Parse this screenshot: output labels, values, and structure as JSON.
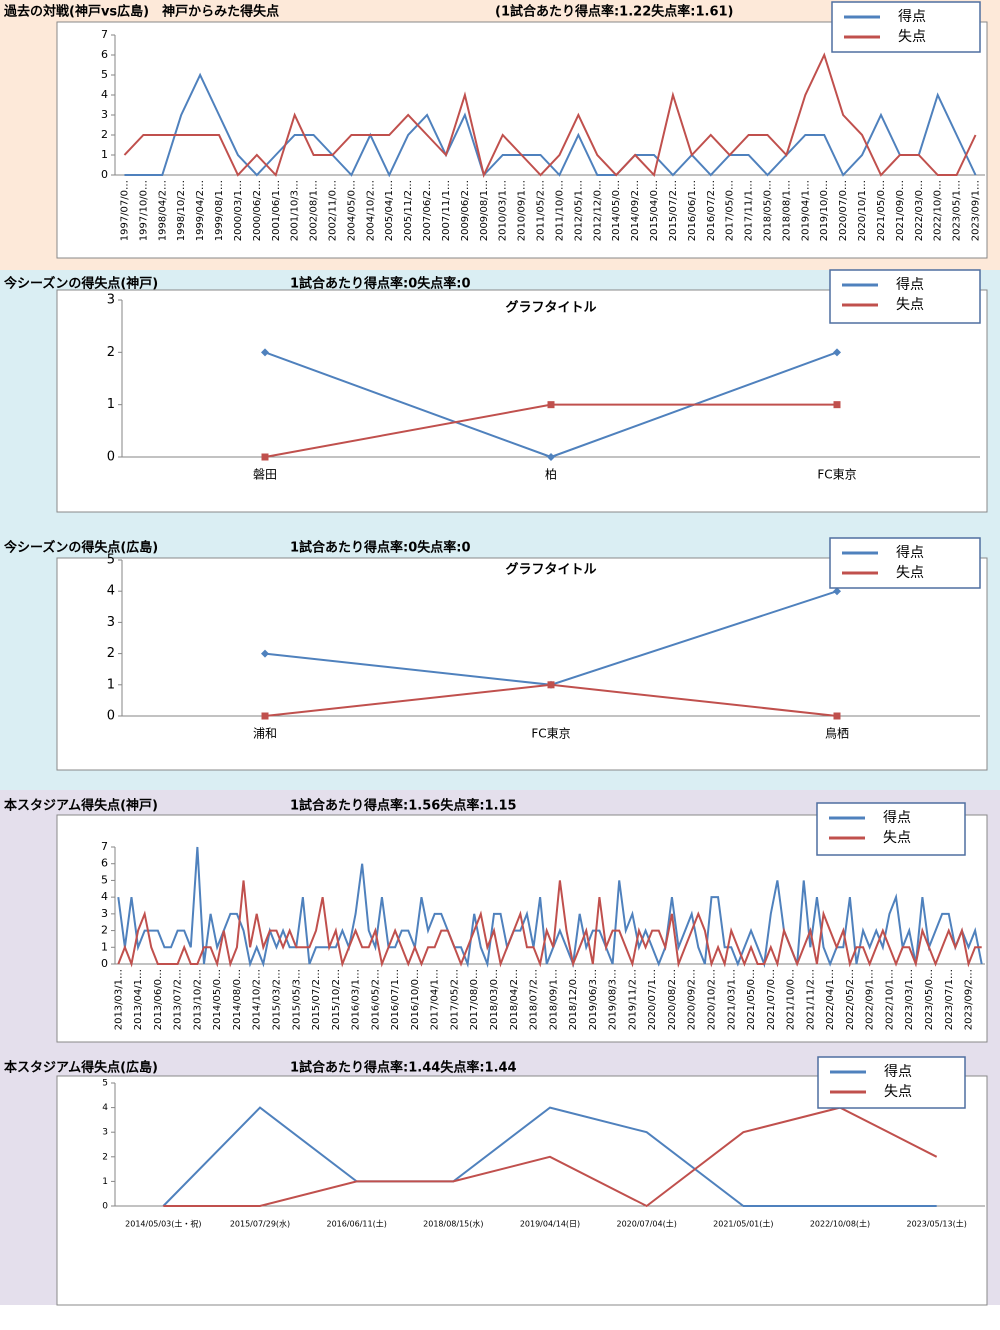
{
  "chart_data": [
    {
      "type": "line",
      "title": "過去の対戦(神戸vs広島)　神戸からみた得失点",
      "subtitle": "(1試合あたり得点率:1.22失点率:1.61)",
      "categories": [
        "1997/07/0…",
        "1997/10/0…",
        "1998/04/2…",
        "1998/10/2…",
        "1999/04/2…",
        "1999/08/1…",
        "2000/03/1…",
        "2000/06/2…",
        "2001/06/1…",
        "2001/10/3…",
        "2002/08/1…",
        "2002/11/0…",
        "2004/05/0…",
        "2004/10/2…",
        "2005/04/1…",
        "2005/11/2…",
        "2007/06/2…",
        "2007/11/1…",
        "2009/06/2…",
        "2009/08/1…",
        "2010/03/1…",
        "2010/09/1…",
        "2011/05/2…",
        "2011/10/0…",
        "2012/05/1…",
        "2012/12/0…",
        "2014/05/0…",
        "2014/09/2…",
        "2015/04/0…",
        "2015/07/2…",
        "2016/06/1…",
        "2016/07/2…",
        "2017/05/0…",
        "2017/11/1…",
        "2018/05/0…",
        "2018/08/1…",
        "2019/04/1…",
        "2019/10/0…",
        "2020/07/0…",
        "2020/10/1…",
        "2021/05/0…",
        "2021/09/0…",
        "2022/03/0…",
        "2022/10/0…",
        "2023/05/1…",
        "2023/09/1…"
      ],
      "series": [
        {
          "name": "得点",
          "color": "#4f81bd",
          "values": [
            0,
            0,
            0,
            3,
            5,
            3,
            1,
            0,
            1,
            2,
            2,
            1,
            0,
            2,
            0,
            2,
            3,
            1,
            3,
            0,
            1,
            1,
            1,
            0,
            2,
            0,
            0,
            1,
            1,
            0,
            1,
            0,
            1,
            1,
            0,
            1,
            2,
            2,
            0,
            1,
            3,
            1,
            1,
            4,
            2,
            0
          ]
        },
        {
          "name": "失点",
          "color": "#c0504d",
          "values": [
            1,
            2,
            2,
            2,
            2,
            2,
            0,
            1,
            0,
            3,
            1,
            1,
            2,
            2,
            2,
            3,
            2,
            1,
            4,
            0,
            2,
            1,
            0,
            1,
            3,
            1,
            0,
            1,
            0,
            4,
            1,
            2,
            1,
            2,
            2,
            1,
            4,
            6,
            3,
            2,
            0,
            1,
            1,
            0,
            0,
            2
          ]
        }
      ],
      "ylim": [
        0,
        7
      ],
      "yticks": [
        0,
        1,
        2,
        3,
        4,
        5,
        6,
        7
      ],
      "grid": false,
      "legend": "upper right",
      "markers": false
    },
    {
      "type": "line",
      "title": "今シーズンの得失点(神戸)",
      "subtitle": "1試合あたり得点率:0失点率:0",
      "plot_title": "グラフタイトル",
      "categories": [
        "磐田",
        "柏",
        "FC東京"
      ],
      "series": [
        {
          "name": "得点",
          "color": "#4f81bd",
          "values": [
            2,
            0,
            2
          ]
        },
        {
          "name": "失点",
          "color": "#c0504d",
          "values": [
            0,
            1,
            1
          ]
        }
      ],
      "ylim": [
        0,
        3
      ],
      "yticks": [
        0,
        1,
        2,
        3
      ],
      "grid": false,
      "legend": "upper right",
      "markers": true
    },
    {
      "type": "line",
      "title": "今シーズンの得失点(広島)",
      "subtitle": "1試合あたり得点率:0失点率:0",
      "plot_title": "グラフタイトル",
      "categories": [
        "浦和",
        "FC東京",
        "鳥栖"
      ],
      "series": [
        {
          "name": "得点",
          "color": "#4f81bd",
          "values": [
            2,
            1,
            4
          ]
        },
        {
          "name": "失点",
          "color": "#c0504d",
          "values": [
            0,
            1,
            0
          ]
        }
      ],
      "ylim": [
        0,
        5
      ],
      "yticks": [
        0,
        1,
        2,
        3,
        4,
        5
      ],
      "grid": false,
      "legend": "upper right",
      "markers": true
    },
    {
      "type": "line",
      "title": "本スタジアム得失点(神戸)",
      "subtitle": "1試合あたり得点率:1.56失点率:1.15",
      "categories": [
        "2013/03/1…",
        null,
        null,
        "2013/04/1…",
        null,
        null,
        "2013/06/0…",
        null,
        null,
        "2013/07/2…",
        null,
        null,
        "2013/10/2…",
        null,
        null,
        "2014/05/0…",
        null,
        null,
        "2014/08/0…",
        null,
        null,
        "2014/10/2…",
        null,
        null,
        "2015/03/2…",
        null,
        null,
        "2015/05/3…",
        null,
        null,
        "2015/07/2…",
        null,
        null,
        "2015/10/2…",
        null,
        null,
        "2016/03/1…",
        null,
        null,
        "2016/05/2…",
        null,
        null,
        "2016/07/1…",
        null,
        null,
        "2016/10/0…",
        null,
        null,
        "2017/04/1…",
        null,
        null,
        "2017/05/2…",
        null,
        null,
        "2017/08/0…",
        null,
        null,
        "2018/03/0…",
        null,
        null,
        "2018/04/2…",
        null,
        null,
        "2018/07/2…",
        null,
        null,
        "2018/09/1…",
        null,
        null,
        "2018/12/0…",
        null,
        null,
        "2019/06/3…",
        null,
        null,
        "2019/08/3…",
        null,
        null,
        "2019/11/2…",
        null,
        null,
        "2020/07/1…",
        null,
        null,
        "2020/08/2…",
        null,
        null,
        "2020/09/2…",
        null,
        null,
        "2020/10/2…",
        null,
        null,
        "2021/03/1…",
        null,
        null,
        "2021/05/0…",
        null,
        null,
        "2021/07/0…",
        null,
        null,
        "2021/10/0…",
        null,
        null,
        "2021/11/2…",
        null,
        null,
        "2022/04/1…",
        null,
        null,
        "2022/05/2…",
        null,
        null,
        "2022/09/1…",
        null,
        null,
        "2022/10/1…",
        null,
        null,
        "2023/03/1…",
        null,
        null,
        "2023/05/0…",
        null,
        null,
        "2023/07/1…",
        null,
        null,
        "2023/09/2…",
        null,
        null
      ],
      "series": [
        {
          "name": "得点",
          "color": "#4f81bd",
          "values": [
            4,
            1,
            4,
            1,
            2,
            2,
            2,
            1,
            1,
            2,
            2,
            1,
            7,
            0,
            3,
            1,
            2,
            3,
            3,
            2,
            0,
            1,
            0,
            2,
            1,
            2,
            1,
            1,
            4,
            0,
            1,
            1,
            1,
            1,
            2,
            1,
            3,
            6,
            2,
            1,
            4,
            1,
            1,
            2,
            2,
            1,
            4,
            2,
            3,
            3,
            2,
            1,
            1,
            0,
            3,
            1,
            0,
            3,
            3,
            1,
            2,
            2,
            3,
            1,
            4,
            0,
            1,
            2,
            1,
            0,
            3,
            1,
            2,
            2,
            1,
            0,
            5,
            2,
            3,
            1,
            2,
            1,
            0,
            1,
            4,
            1,
            2,
            3,
            1,
            0,
            4,
            4,
            1,
            1,
            0,
            1,
            2,
            1,
            0,
            3,
            5,
            2,
            1,
            0,
            5,
            1,
            4,
            1,
            0,
            1,
            1,
            4,
            0,
            2,
            1,
            2,
            1,
            3,
            4,
            1,
            2,
            0,
            4,
            1,
            2,
            3,
            3,
            1,
            2,
            1,
            2,
            0
          ]
        },
        {
          "name": "失点",
          "color": "#c0504d",
          "values": [
            0,
            1,
            0,
            2,
            3,
            1,
            0,
            0,
            0,
            0,
            1,
            0,
            0,
            1,
            1,
            0,
            2,
            0,
            1,
            5,
            1,
            3,
            1,
            2,
            2,
            1,
            2,
            1,
            1,
            1,
            2,
            4,
            1,
            2,
            0,
            1,
            2,
            1,
            1,
            2,
            0,
            1,
            2,
            1,
            0,
            1,
            0,
            1,
            1,
            2,
            2,
            1,
            0,
            1,
            2,
            3,
            1,
            2,
            0,
            1,
            2,
            3,
            1,
            1,
            0,
            2,
            1,
            5,
            2,
            0,
            1,
            2,
            0,
            4,
            1,
            2,
            2,
            1,
            0,
            2,
            1,
            2,
            2,
            1,
            3,
            0,
            1,
            2,
            3,
            2,
            0,
            1,
            0,
            2,
            1,
            0,
            1,
            0,
            0,
            1,
            0,
            2,
            1,
            0,
            1,
            2,
            0,
            3,
            2,
            1,
            2,
            0,
            1,
            1,
            0,
            1,
            2,
            1,
            0,
            1,
            1,
            0,
            2,
            1,
            0,
            1,
            2,
            1,
            2,
            0,
            1,
            1
          ]
        }
      ],
      "ylim": [
        0,
        7
      ],
      "yticks": [
        0,
        1,
        2,
        3,
        4,
        5,
        6,
        7
      ],
      "grid": false,
      "legend": "upper right",
      "markers": false
    },
    {
      "type": "line",
      "title": "本スタジアム得失点(広島)",
      "subtitle": "1試合あたり得点率:1.44失点率:1.44",
      "categories": [
        "2014/05/03(土・祝)",
        "2015/07/29(水)",
        "2016/06/11(土)",
        "2018/08/15(水)",
        "2019/04/14(日)",
        "2020/07/04(土)",
        "2021/05/01(土)",
        "2022/10/08(土)",
        "2023/05/13(土)"
      ],
      "series": [
        {
          "name": "得点",
          "color": "#4f81bd",
          "values": [
            0,
            4,
            1,
            1,
            4,
            3,
            0,
            0,
            0
          ]
        },
        {
          "name": "失点",
          "color": "#c0504d",
          "values": [
            0,
            0,
            1,
            1,
            2,
            0,
            3,
            4,
            2
          ]
        }
      ],
      "ylim": [
        0,
        5
      ],
      "yticks": [
        0,
        1,
        2,
        3,
        4,
        5
      ],
      "grid": false,
      "legend": "upper right",
      "markers": false
    }
  ]
}
